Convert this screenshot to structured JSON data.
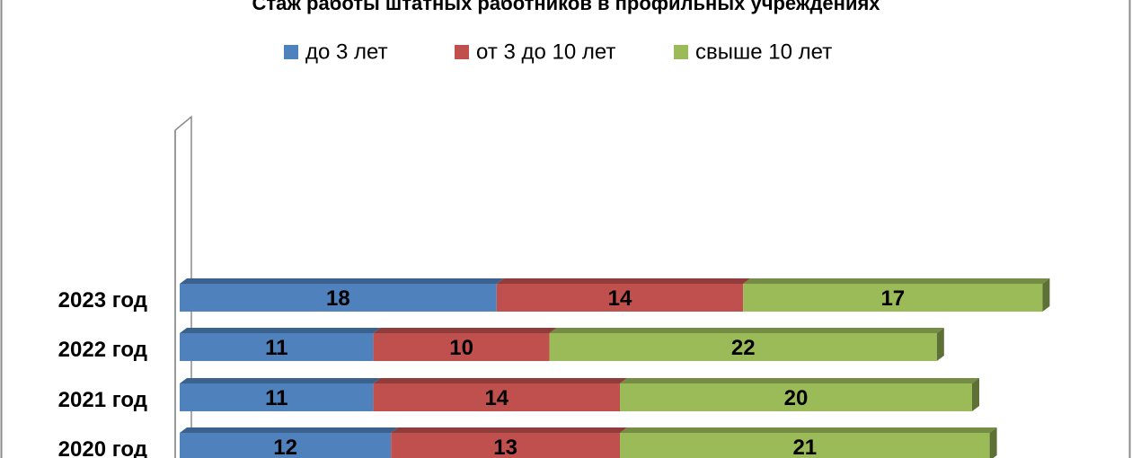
{
  "chart_data": {
    "type": "stacked-bar-3d",
    "title": "Стаж работы штатных работников в профильных учреждениях",
    "categories": [
      "2023 год",
      "2022 год",
      "2021 год",
      "2020 год"
    ],
    "series": [
      {
        "name": "до  3 лет",
        "color": "#4f81bd",
        "values": [
          18,
          11,
          11,
          12
        ]
      },
      {
        "name": "от 3 до 10 лет",
        "color": "#c0504d",
        "values": [
          14,
          10,
          14,
          13
        ]
      },
      {
        "name": "свыше 10 лет",
        "color": "#9bbb59",
        "values": [
          17,
          22,
          20,
          21
        ]
      }
    ],
    "legend": "top"
  }
}
